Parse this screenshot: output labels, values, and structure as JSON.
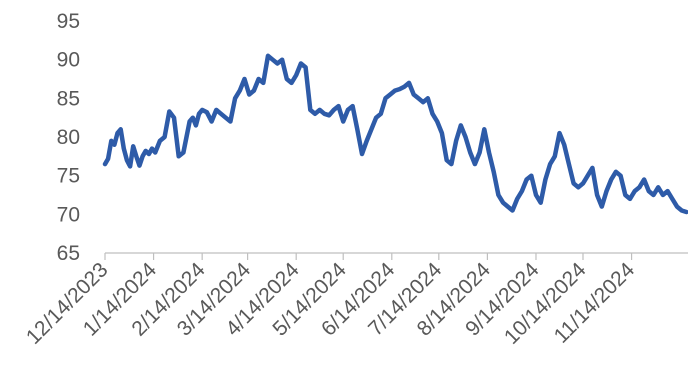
{
  "chart_data": {
    "type": "line",
    "title": "",
    "xlabel": "",
    "ylabel": "",
    "ylim": [
      65,
      95
    ],
    "y_ticks": [
      "65",
      "70",
      "75",
      "80",
      "85",
      "90",
      "95"
    ],
    "x_ticks": [
      "12/14/2023",
      "1/14/2024",
      "2/14/2024",
      "3/14/2024",
      "4/14/2024",
      "5/14/2024",
      "6/14/2024",
      "7/14/2024",
      "8/14/2024",
      "9/14/2024",
      "10/14/2024",
      "11/14/2024"
    ],
    "x_range": [
      "2023-12-14",
      "2024-12-20"
    ],
    "grid": false,
    "legend": "none",
    "series_color": "#2E5BA8",
    "series": [
      {
        "x": [
          "2023-12-14",
          "2023-12-16",
          "2023-12-18",
          "2023-12-20",
          "2023-12-22",
          "2023-12-24",
          "2023-12-26",
          "2023-12-28",
          "2023-12-30",
          "2024-01-01",
          "2024-01-03",
          "2024-01-05",
          "2024-01-07",
          "2024-01-09",
          "2024-01-11",
          "2024-01-13",
          "2024-01-15",
          "2024-01-18",
          "2024-01-21",
          "2024-01-24",
          "2024-01-27",
          "2024-01-30",
          "2024-02-02",
          "2024-02-04",
          "2024-02-06",
          "2024-02-08",
          "2024-02-10",
          "2024-02-12",
          "2024-02-14",
          "2024-02-17",
          "2024-02-20",
          "2024-02-23",
          "2024-02-26",
          "2024-02-29",
          "2024-03-03",
          "2024-03-06",
          "2024-03-09",
          "2024-03-12",
          "2024-03-15",
          "2024-03-18",
          "2024-03-21",
          "2024-03-24",
          "2024-03-27",
          "2024-03-30",
          "2024-04-02",
          "2024-04-05",
          "2024-04-08",
          "2024-04-11",
          "2024-04-14",
          "2024-04-17",
          "2024-04-20",
          "2024-04-23",
          "2024-04-26",
          "2024-04-29",
          "2024-05-02",
          "2024-05-05",
          "2024-05-08",
          "2024-05-11",
          "2024-05-14",
          "2024-05-17",
          "2024-05-20",
          "2024-05-23",
          "2024-05-26",
          "2024-05-29",
          "2024-06-01",
          "2024-06-04",
          "2024-06-07",
          "2024-06-10",
          "2024-06-13",
          "2024-06-16",
          "2024-06-19",
          "2024-06-22",
          "2024-06-25",
          "2024-06-28",
          "2024-07-01",
          "2024-07-04",
          "2024-07-07",
          "2024-07-10",
          "2024-07-13",
          "2024-07-16",
          "2024-07-19",
          "2024-07-22",
          "2024-07-25",
          "2024-07-28",
          "2024-07-31",
          "2024-08-03",
          "2024-08-06",
          "2024-08-09",
          "2024-08-12",
          "2024-08-15",
          "2024-08-18",
          "2024-08-21",
          "2024-08-24",
          "2024-08-27",
          "2024-08-30",
          "2024-09-02",
          "2024-09-05",
          "2024-09-08",
          "2024-09-11",
          "2024-09-14",
          "2024-09-17",
          "2024-09-20",
          "2024-09-23",
          "2024-09-26",
          "2024-09-29",
          "2024-10-02",
          "2024-10-05",
          "2024-10-08",
          "2024-10-11",
          "2024-10-14",
          "2024-10-17",
          "2024-10-20",
          "2024-10-23",
          "2024-10-26",
          "2024-10-29",
          "2024-11-01",
          "2024-11-04",
          "2024-11-07",
          "2024-11-10",
          "2024-11-13",
          "2024-11-16",
          "2024-11-19",
          "2024-11-22",
          "2024-11-25",
          "2024-11-28",
          "2024-12-01",
          "2024-12-04",
          "2024-12-07",
          "2024-12-10",
          "2024-12-13",
          "2024-12-16",
          "2024-12-19"
        ],
        "y": [
          76.5,
          77.2,
          79.5,
          79.0,
          80.5,
          81.0,
          78.5,
          77.0,
          76.2,
          78.8,
          77.5,
          76.3,
          77.5,
          78.2,
          77.8,
          78.5,
          78.0,
          79.5,
          80.0,
          83.3,
          82.5,
          77.5,
          78.0,
          80.0,
          82.0,
          82.5,
          81.5,
          83.0,
          83.5,
          83.2,
          82.0,
          83.5,
          83.0,
          82.5,
          82.0,
          85.0,
          86.0,
          87.5,
          85.5,
          86.0,
          87.5,
          87.0,
          90.5,
          90.0,
          89.5,
          90.0,
          87.5,
          87.0,
          88.0,
          89.5,
          89.0,
          83.5,
          83.0,
          83.5,
          83.0,
          82.8,
          83.5,
          84.0,
          82.0,
          83.5,
          84.0,
          81.0,
          77.8,
          79.5,
          81.0,
          82.5,
          83.0,
          85.0,
          85.5,
          86.0,
          86.2,
          86.5,
          87.0,
          85.5,
          85.0,
          84.5,
          85.0,
          83.0,
          82.0,
          80.5,
          77.0,
          76.5,
          79.5,
          81.5,
          80.0,
          78.0,
          76.5,
          78.0,
          81.0,
          78.0,
          75.5,
          72.5,
          71.5,
          71.0,
          70.5,
          72.0,
          73.0,
          74.5,
          75.0,
          72.5,
          71.5,
          74.5,
          76.5,
          77.5,
          80.5,
          79.0,
          76.5,
          74.0,
          73.5,
          74.0,
          75.0,
          76.0,
          72.5,
          71.0,
          73.0,
          74.5,
          75.5,
          75.0,
          72.5,
          72.0,
          73.0,
          73.5,
          74.5,
          73.0,
          72.5,
          73.5,
          72.5,
          73.0,
          72.0,
          71.0,
          70.5,
          70.3
        ]
      }
    ]
  }
}
